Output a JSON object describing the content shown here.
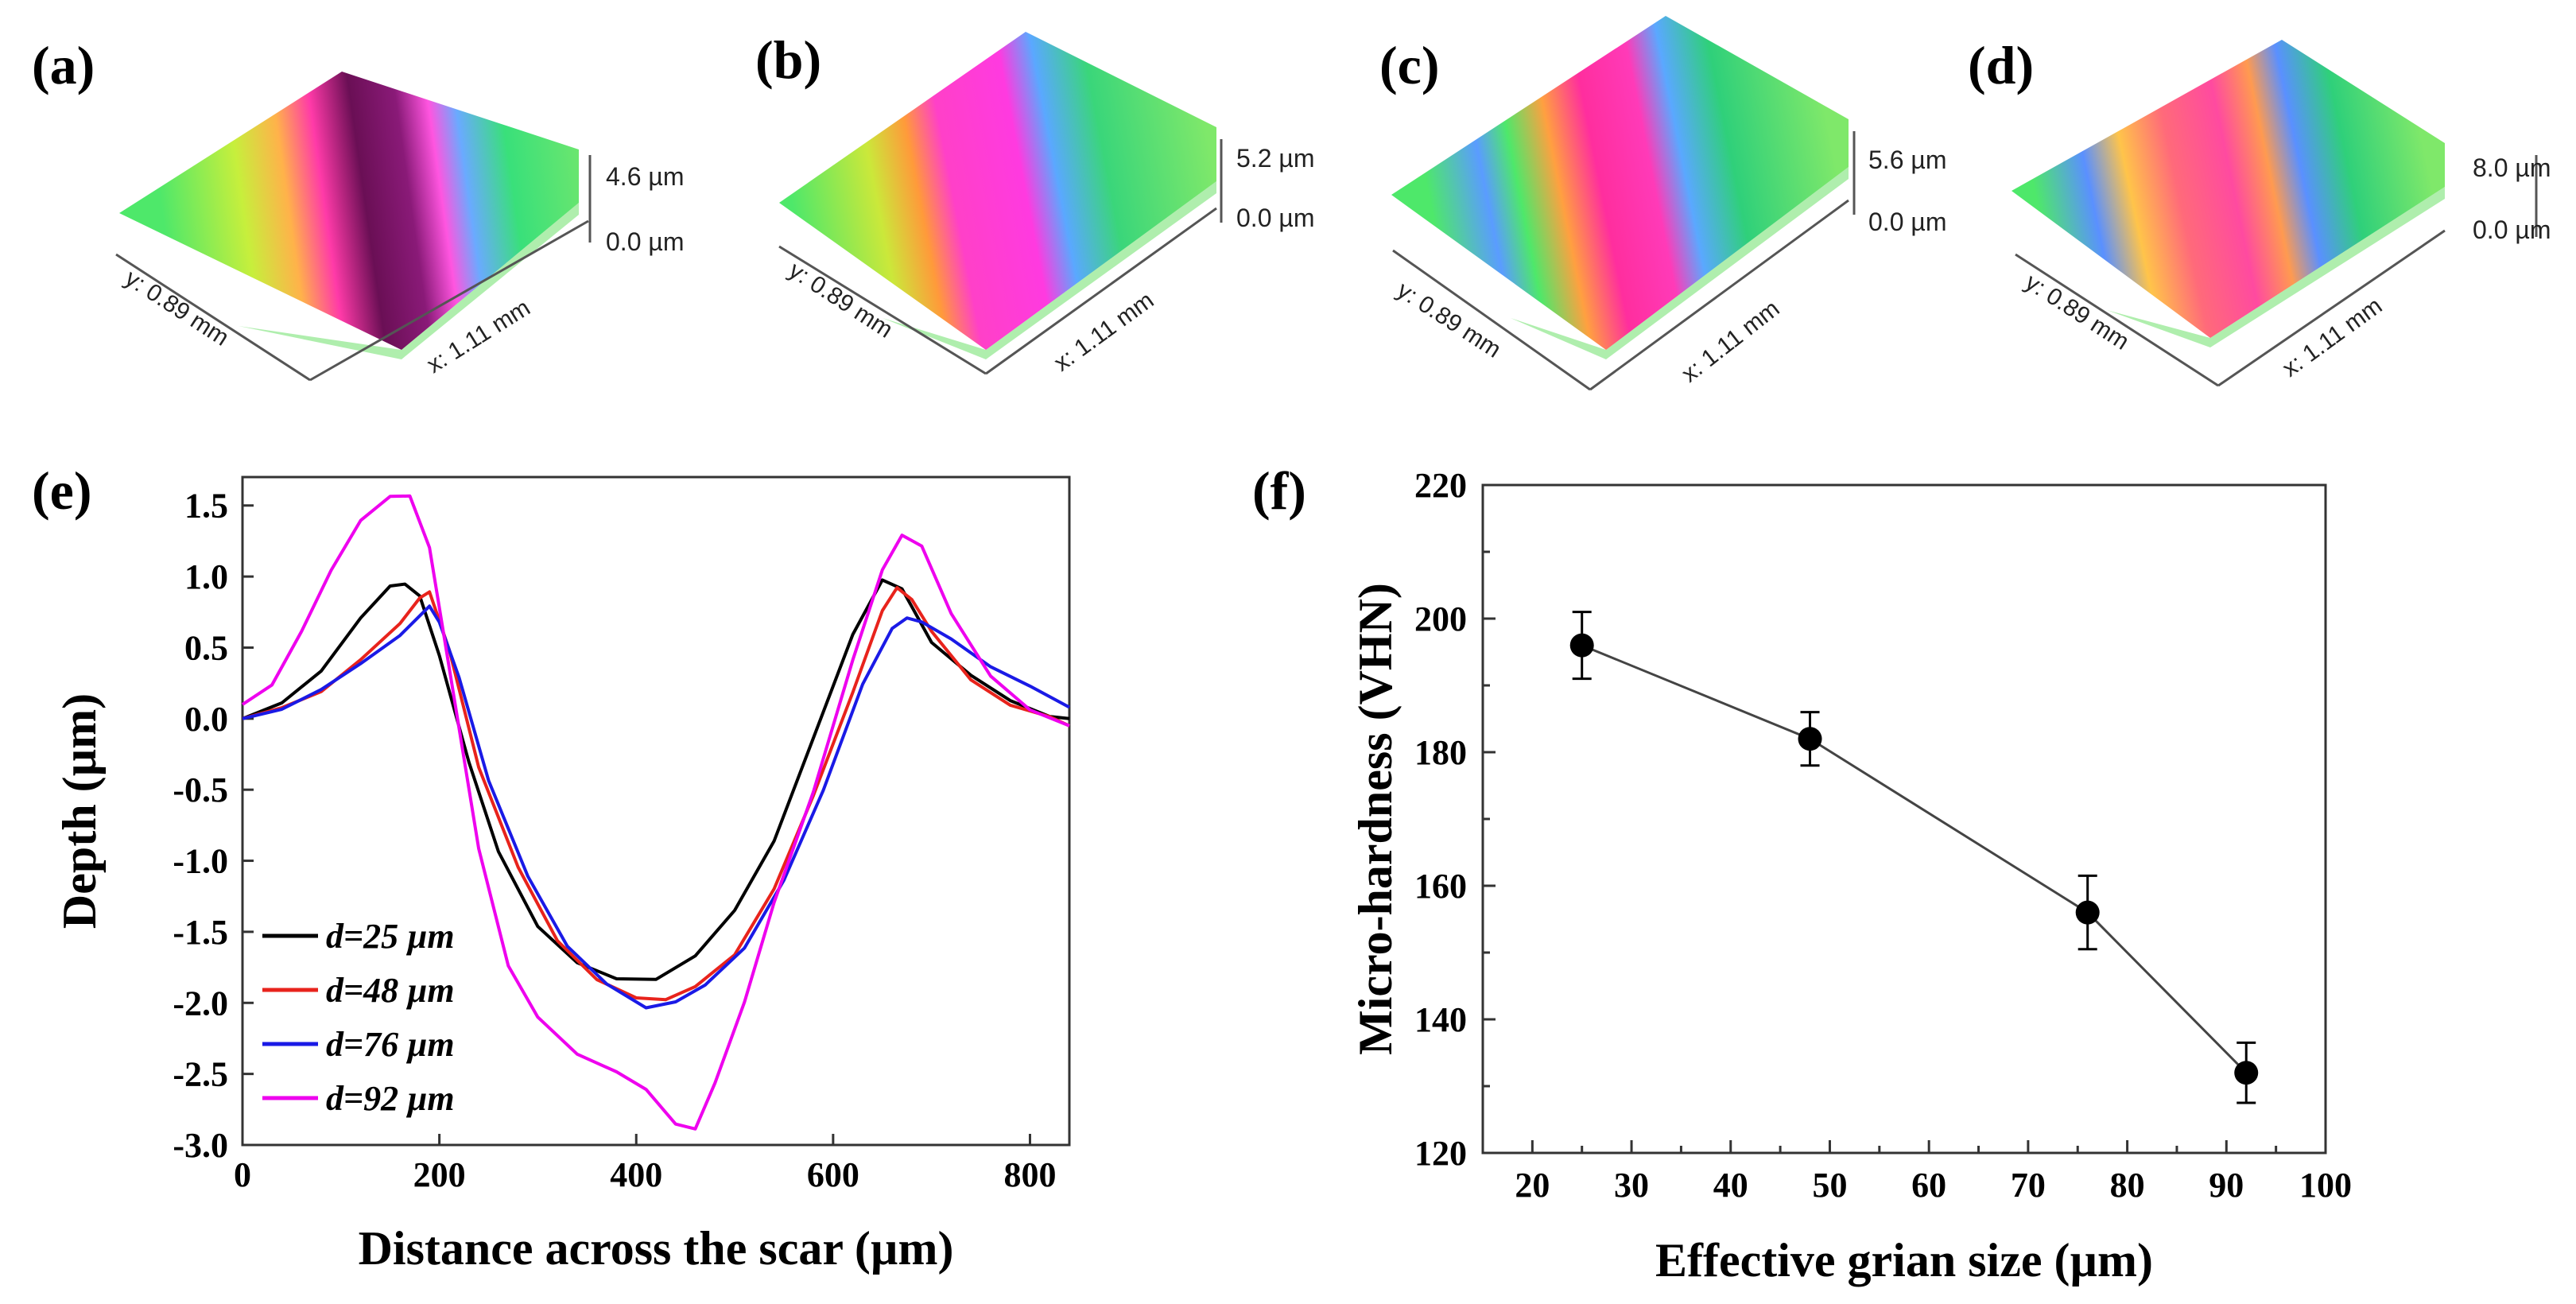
{
  "figure": {
    "panel_labels": [
      "(a)",
      "(b)",
      "(c)",
      "(d)",
      "(e)",
      "(f)"
    ]
  },
  "topography": [
    {
      "label": "(a)",
      "z_max": "4.6 µm",
      "z_min": "0.0 µm",
      "y_dim": "y: 0.89 mm",
      "x_dim": "x: 1.11 mm",
      "center_color": "#4a0a3a"
    },
    {
      "label": "(b)",
      "z_max": "5.2 µm",
      "z_min": "0.0 µm",
      "y_dim": "y: 0.89 mm",
      "x_dim": "x: 1.11 mm",
      "center_color": "#ff33d6"
    },
    {
      "label": "(c)",
      "z_max": "5.6 µm",
      "z_min": "0.0 µm",
      "y_dim": "y: 0.89 mm",
      "x_dim": "x: 1.11 mm",
      "center_color": "#ff2ea8"
    },
    {
      "label": "(d)",
      "z_max": "8.0 µm",
      "z_min": "0.0 µm",
      "y_dim": "y: 0.89 mm",
      "x_dim": "x: 1.11 mm",
      "center_color": "#ff4a8a"
    }
  ],
  "chart_data": [
    {
      "type": "line",
      "panel": "(e)",
      "title": "",
      "xlabel": "Distance across the scar (µm)",
      "ylabel": "Depth (µm)",
      "xlim": [
        0,
        840
      ],
      "ylim": [
        -3.0,
        1.7
      ],
      "xticks": [
        0,
        200,
        400,
        600,
        800
      ],
      "yticks": [
        1.5,
        1.0,
        0.5,
        0.0,
        -0.5,
        -1.0,
        -1.5,
        -2.0,
        -2.5,
        -3.0
      ],
      "ytick_labels": [
        "1.5",
        "1.0",
        "0.5",
        "0.0",
        "-0.5",
        "-1.0",
        "-1.5",
        "-2.0",
        "-2.5",
        "-3.0"
      ],
      "legend_position": "lower-left",
      "series": [
        {
          "name": "d=25 µm",
          "color": "#000000",
          "x": [
            0,
            40,
            80,
            120,
            150,
            165,
            180,
            200,
            230,
            260,
            300,
            340,
            380,
            420,
            460,
            500,
            540,
            580,
            620,
            650,
            670,
            700,
            740,
            780,
            820,
            840
          ],
          "y": [
            0,
            0.1,
            0.35,
            0.7,
            0.93,
            0.96,
            0.85,
            0.45,
            -0.3,
            -0.95,
            -1.45,
            -1.72,
            -1.84,
            -1.82,
            -1.68,
            -1.35,
            -0.85,
            -0.15,
            0.6,
            0.98,
            0.9,
            0.55,
            0.3,
            0.12,
            0.03,
            0
          ]
        },
        {
          "name": "d=48 µm",
          "color": "#e8231c",
          "x": [
            0,
            40,
            80,
            120,
            160,
            180,
            190,
            210,
            240,
            280,
            320,
            360,
            400,
            430,
            460,
            500,
            540,
            580,
            620,
            650,
            665,
            680,
            700,
            740,
            780,
            820,
            840
          ],
          "y": [
            0,
            0.08,
            0.2,
            0.4,
            0.68,
            0.85,
            0.88,
            0.5,
            -0.35,
            -1.05,
            -1.55,
            -1.85,
            -1.96,
            -1.97,
            -1.9,
            -1.65,
            -1.2,
            -0.55,
            0.2,
            0.75,
            0.92,
            0.85,
            0.6,
            0.28,
            0.1,
            0.0,
            -0.05
          ]
        },
        {
          "name": "d=76 µm",
          "color": "#1a1ae6",
          "x": [
            0,
            40,
            80,
            120,
            160,
            190,
            200,
            220,
            250,
            290,
            330,
            370,
            410,
            440,
            470,
            510,
            550,
            590,
            630,
            660,
            675,
            690,
            720,
            760,
            800,
            840
          ],
          "y": [
            0,
            0.08,
            0.2,
            0.38,
            0.6,
            0.78,
            0.68,
            0.3,
            -0.45,
            -1.1,
            -1.6,
            -1.88,
            -2.02,
            -2.0,
            -1.88,
            -1.6,
            -1.15,
            -0.5,
            0.25,
            0.62,
            0.72,
            0.68,
            0.55,
            0.38,
            0.22,
            0.08
          ]
        },
        {
          "name": "d=92 µm",
          "color": "#ee00ee",
          "x": [
            0,
            30,
            60,
            90,
            120,
            150,
            170,
            190,
            210,
            240,
            270,
            300,
            340,
            380,
            410,
            440,
            460,
            480,
            510,
            540,
            580,
            620,
            650,
            670,
            690,
            720,
            760,
            800,
            840
          ],
          "y": [
            0.1,
            0.25,
            0.6,
            1.05,
            1.4,
            1.55,
            1.58,
            1.2,
            0.35,
            -0.9,
            -1.75,
            -2.1,
            -2.35,
            -2.5,
            -2.6,
            -2.85,
            -2.9,
            -2.55,
            -2.0,
            -1.3,
            -0.5,
            0.4,
            1.05,
            1.3,
            1.2,
            0.75,
            0.3,
            0.05,
            -0.05
          ]
        }
      ]
    },
    {
      "type": "scatter",
      "panel": "(f)",
      "title": "",
      "xlabel": "Effective grian size (µm)",
      "ylabel": "Micro-hardness (VHN)",
      "xlim": [
        15,
        100
      ],
      "ylim": [
        120,
        220
      ],
      "xticks": [
        20,
        30,
        40,
        50,
        60,
        70,
        80,
        90,
        100
      ],
      "yticks": [
        120,
        140,
        160,
        180,
        200,
        220
      ],
      "series": [
        {
          "name": "micro-hardness",
          "color": "#000000",
          "x": [
            25,
            48,
            76,
            92
          ],
          "y": [
            196,
            182,
            156,
            132
          ],
          "err": [
            5,
            4,
            5.5,
            4.5
          ]
        }
      ]
    }
  ]
}
